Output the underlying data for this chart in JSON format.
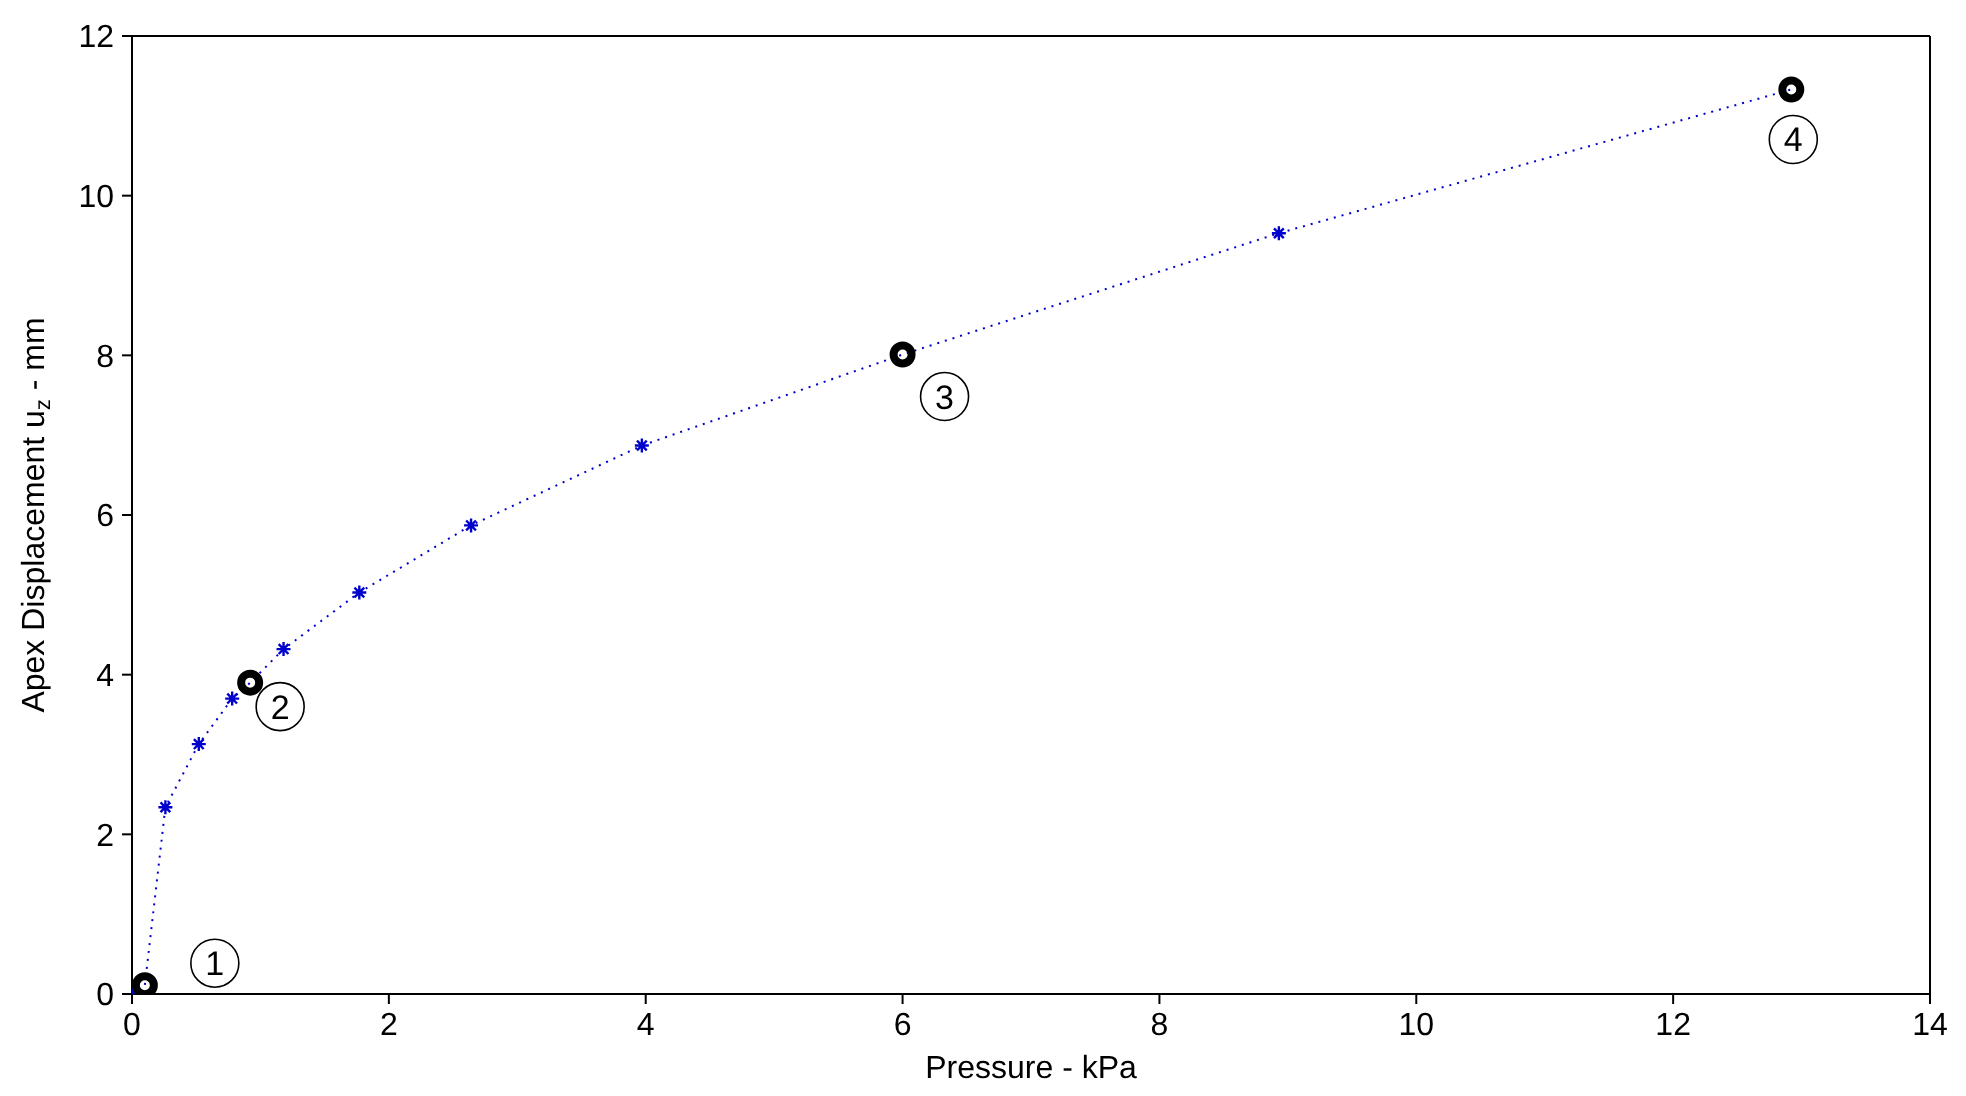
{
  "chart_data": {
    "type": "line",
    "xlabel": "Pressure - kPa",
    "ylabel": "Apex Displacement u$_{z}$ - mm",
    "xlim": [
      0,
      14
    ],
    "xticks": [
      0,
      2,
      4,
      6,
      8,
      10,
      12,
      14
    ],
    "ylim": [
      0,
      12
    ],
    "yticks": [
      0,
      2,
      4,
      6,
      8,
      10,
      12
    ],
    "grid": false,
    "legend": false,
    "series": [
      {
        "color": "#0000cc",
        "marker": "none",
        "line_style": "dotted",
        "x": [
          0,
          0.1,
          0.26,
          0.52,
          0.78,
          0.92,
          1.18,
          1.77,
          2.64,
          3.97,
          6.0,
          8.93,
          12.92
        ],
        "values": [
          0,
          0.11,
          2.34,
          3.13,
          3.7,
          3.9,
          4.32,
          5.03,
          5.87,
          6.87,
          8.01,
          9.53,
          11.33
        ]
      },
      {
        "type": "scatter",
        "color": "#0000cc",
        "marker": "cross",
        "x": [
          0,
          0.26,
          0.52,
          0.78,
          1.18,
          1.77,
          2.64,
          3.97,
          8.93
        ],
        "values": [
          0,
          2.34,
          3.13,
          3.7,
          4.32,
          5.03,
          5.87,
          6.87,
          9.53
        ]
      },
      {
        "type": "scatter",
        "color": "#000000",
        "marker": "circle",
        "x": [
          0.1,
          0.92,
          6.0,
          12.92
        ],
        "values": [
          0.11,
          3.9,
          8.01,
          11.33
        ]
      }
    ],
    "annotations": [
      {
        "text": "1",
        "x": 0.1,
        "y": 0.11
      },
      {
        "text": "2",
        "x": 0.92,
        "y": 3.9
      },
      {
        "text": "3",
        "x": 6.0,
        "y": 8.01
      },
      {
        "text": "4",
        "x": 12.92,
        "y": 11.33
      }
    ]
  }
}
